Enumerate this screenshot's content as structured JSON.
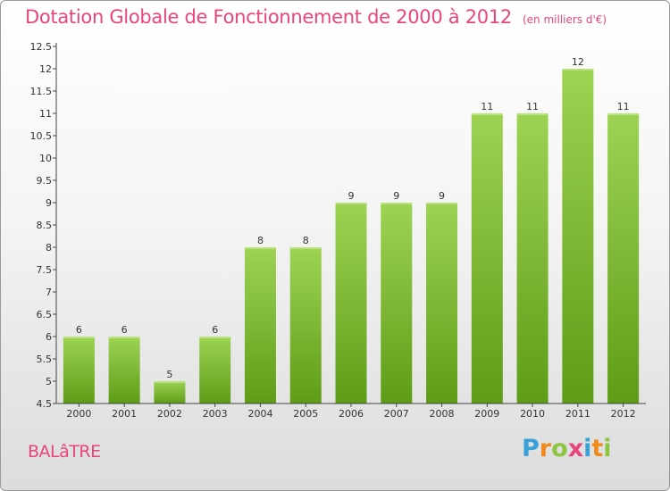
{
  "title": "Dotation Globale de Fonctionnement de 2000 à 2012",
  "unit_label": "(en milliers d'€)",
  "commune": "BALâTRE",
  "logo": {
    "letters": [
      "P",
      "r",
      "o",
      "x",
      "i",
      "t",
      "i"
    ],
    "colors": [
      "#3aa0d8",
      "#f08a1c",
      "#8cc63f",
      "#e8457d",
      "#3aa0d8",
      "#f08a1c",
      "#8cc63f"
    ]
  },
  "colors": {
    "bar_top": "#9ed354",
    "bar_bottom": "#5e9c17",
    "axis": "#444444",
    "text": "#333333"
  },
  "chart_data": {
    "type": "bar",
    "categories": [
      "2000",
      "2001",
      "2002",
      "2003",
      "2004",
      "2005",
      "2006",
      "2007",
      "2008",
      "2009",
      "2010",
      "2011",
      "2012"
    ],
    "values": [
      6,
      6,
      5,
      6,
      8,
      8,
      9,
      9,
      9,
      11,
      11,
      12,
      11
    ],
    "data_labels": [
      "6",
      "6",
      "5",
      "6",
      "8",
      "8",
      "9",
      "9",
      "9",
      "11",
      "11",
      "12",
      "11"
    ],
    "ylim": [
      4.5,
      12.5
    ],
    "yticks": [
      4.5,
      5,
      5.5,
      6,
      6.5,
      7,
      7.5,
      8,
      8.5,
      9,
      9.5,
      10,
      10.5,
      11,
      11.5,
      12,
      12.5
    ],
    "ytick_labels": [
      "4.5",
      "5",
      "5.5",
      "6",
      "6.5",
      "7",
      "7.5",
      "8",
      "8.5",
      "9",
      "9.5",
      "10",
      "10.5",
      "11",
      "11.5",
      "12",
      "12.5"
    ],
    "title": "Dotation Globale de Fonctionnement de 2000 à 2012",
    "grid": false,
    "legend": "none"
  }
}
